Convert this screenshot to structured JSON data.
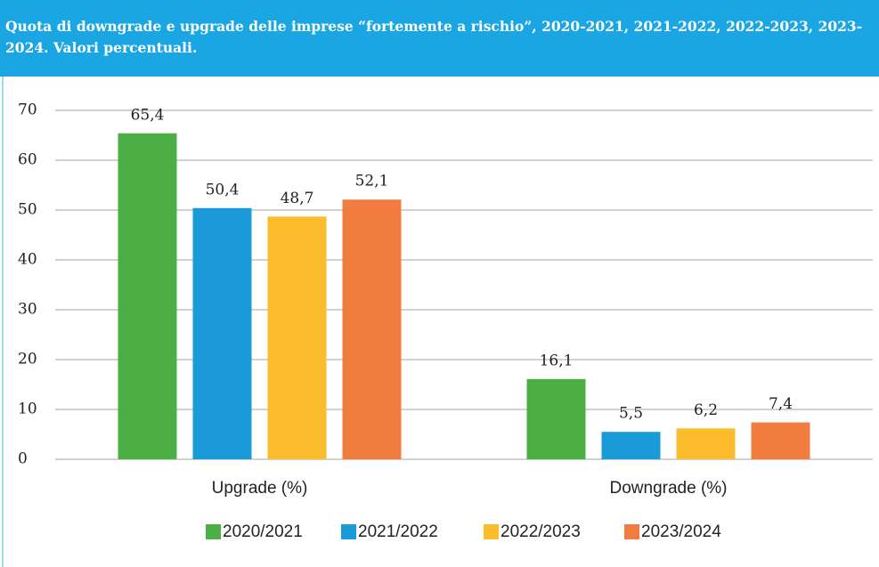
{
  "chart_data": {
    "type": "bar",
    "title": "Quota di downgrade e upgrade delle imprese “fortemente a rischio”, 2020-2021, 2021-2022, 2022-2023, 2023-2024. Valori percentuali.",
    "categories": [
      "Upgrade (%)",
      "Downgrade (%)"
    ],
    "series": [
      {
        "name": "2020/2021",
        "color": "#4caf46",
        "values": [
          65.4,
          16.1
        ],
        "value_labels": [
          "65,4",
          "16,1"
        ]
      },
      {
        "name": "2021/2022",
        "color": "#1a9bd7",
        "values": [
          50.4,
          5.5
        ],
        "value_labels": [
          "50,4",
          "5,5"
        ]
      },
      {
        "name": "2022/2023",
        "color": "#fbbd2b",
        "values": [
          48.7,
          6.2
        ],
        "value_labels": [
          "48,7",
          "6,2"
        ]
      },
      {
        "name": "2023/2024",
        "color": "#f07c3f",
        "values": [
          52.1,
          7.4
        ],
        "value_labels": [
          "52,1",
          "7,4"
        ]
      }
    ],
    "ylim": [
      0,
      70
    ],
    "yticks": [
      0,
      10,
      20,
      30,
      40,
      50,
      60,
      70
    ],
    "grid": true,
    "legend": "bottom"
  }
}
